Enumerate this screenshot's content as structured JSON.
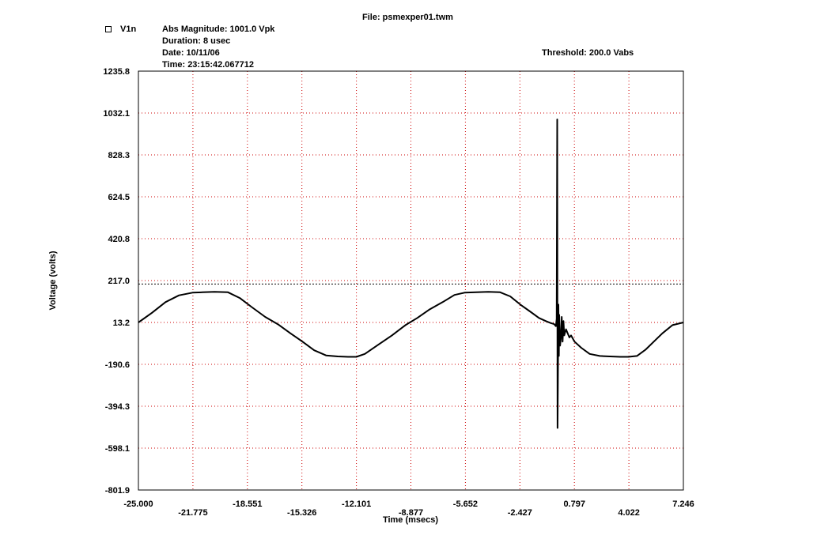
{
  "header": {
    "file_line": "File: psmexper01.twm",
    "abs_magnitude": "Abs Magnitude: 1001.0 Vpk",
    "duration": "Duration: 8 usec",
    "date": "Date: 10/11/06",
    "time": "Time: 23:15:42.067712",
    "threshold_label": "Threshold: 200.0 Vabs"
  },
  "chart_data": {
    "type": "line",
    "title": "",
    "xlabel": "Time (msecs)",
    "ylabel": "Voltage (volts)",
    "xlim": [
      -25.0,
      7.246
    ],
    "ylim": [
      -801.9,
      1235.8
    ],
    "grid": true,
    "legend_placement": "top-left",
    "line_color": "#000000",
    "grid_color": "#cc0000",
    "x_ticks": [
      "-25.000",
      "-21.775",
      "-18.551",
      "-15.326",
      "-12.101",
      "-8.877",
      "-5.652",
      "-2.427",
      "0.797",
      "4.022",
      "7.246"
    ],
    "x_tick_values": [
      -25.0,
      -21.775,
      -18.551,
      -15.326,
      -12.101,
      -8.877,
      -5.652,
      -2.427,
      0.797,
      4.022,
      7.246
    ],
    "y_ticks": [
      "1235.8",
      "1032.1",
      "828.3",
      "624.5",
      "420.8",
      "217.0",
      "13.2",
      "-190.6",
      "-394.3",
      "-598.1",
      "-801.9"
    ],
    "y_tick_values": [
      1235.8,
      1032.1,
      828.3,
      624.5,
      420.8,
      217.0,
      13.2,
      -190.6,
      -394.3,
      -598.1,
      -801.9
    ],
    "threshold": 200.0,
    "series": [
      {
        "name": "V1n",
        "x": [
          -25.0,
          -24.2,
          -23.4,
          -22.6,
          -21.8,
          -21.2,
          -20.5,
          -19.7,
          -19.0,
          -18.3,
          -17.5,
          -16.7,
          -16.0,
          -15.3,
          -14.6,
          -13.9,
          -13.2,
          -12.6,
          -12.1,
          -11.6,
          -10.8,
          -10.0,
          -9.2,
          -8.5,
          -7.8,
          -7.0,
          -6.3,
          -5.7,
          -5.0,
          -4.3,
          -3.6,
          -3.0,
          -2.4,
          -1.8,
          -1.3,
          -0.9,
          -0.6,
          -0.4,
          -0.3,
          -0.25,
          -0.22,
          -0.2,
          -0.18,
          -0.15,
          -0.12,
          -0.1,
          -0.05,
          0.0,
          0.05,
          0.1,
          0.15,
          0.2,
          0.3,
          0.4,
          0.5,
          0.6,
          0.8,
          1.2,
          1.7,
          2.3,
          2.9,
          3.5,
          4.0,
          4.5,
          5.0,
          5.5,
          6.0,
          6.6,
          7.246
        ],
        "y": [
          13,
          60,
          112,
          145,
          158,
          160,
          162,
          160,
          132,
          88,
          40,
          2,
          -40,
          -80,
          -122,
          -147,
          -152,
          -154,
          -154,
          -140,
          -95,
          -50,
          0,
          35,
          75,
          112,
          147,
          158,
          160,
          162,
          160,
          140,
          100,
          65,
          35,
          20,
          10,
          5,
          -5,
          30,
          1001,
          -500,
          -300,
          100,
          -150,
          50,
          -100,
          -60,
          40,
          -80,
          20,
          -50,
          -20,
          -40,
          -60,
          -50,
          -80,
          -110,
          -140,
          -150,
          -152,
          -154,
          -154,
          -150,
          -120,
          -80,
          -40,
          0,
          13
        ]
      }
    ]
  }
}
